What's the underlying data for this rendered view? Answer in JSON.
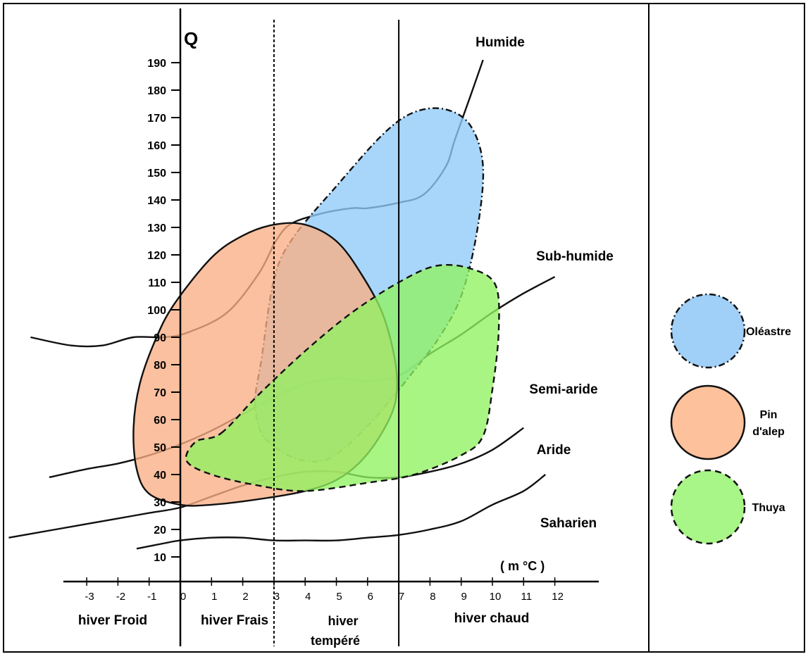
{
  "chart_data": {
    "type": "scatter",
    "title": "",
    "ylabel": "Q",
    "xlabel": "( m °C )",
    "xlim": [
      -3.5,
      12
    ],
    "ylim": [
      0,
      200
    ],
    "x_ticks": [
      -3,
      -2,
      -1,
      0,
      1,
      2,
      3,
      4,
      5,
      6,
      7,
      8,
      9,
      10,
      11,
      12
    ],
    "y_ticks": [
      10,
      20,
      30,
      40,
      50,
      60,
      70,
      80,
      90,
      100,
      110,
      120,
      130,
      140,
      150,
      160,
      170,
      180,
      190
    ],
    "vertical_lines_x": [
      0,
      3,
      7
    ],
    "winter_zones": [
      {
        "label": "hiver Froid",
        "x_range": [
          -3.5,
          0
        ]
      },
      {
        "label": "hiver Frais",
        "x_range": [
          0,
          3
        ]
      },
      {
        "label": "hiver tempéré",
        "x_range": [
          3,
          7
        ]
      },
      {
        "label": "hiver chaud",
        "x_range": [
          7,
          12
        ]
      }
    ],
    "bioclimatic_boundaries": [
      {
        "name": "Humide",
        "points": [
          [
            3,
            124
          ],
          [
            3.5,
            131
          ],
          [
            4.5,
            135
          ],
          [
            5.5,
            137
          ],
          [
            6,
            137
          ],
          [
            7,
            139
          ],
          [
            7.8,
            142
          ],
          [
            8.5,
            152
          ],
          [
            8.8,
            162
          ],
          [
            9.3,
            178
          ],
          [
            9.7,
            191
          ]
        ]
      },
      {
        "name": "Sub-humide",
        "points": [
          [
            -4.8,
            90
          ],
          [
            -3.5,
            87
          ],
          [
            -2.5,
            87
          ],
          [
            -1.5,
            90
          ],
          [
            -0.5,
            90
          ],
          [
            0.3,
            92
          ],
          [
            1.5,
            99
          ],
          [
            2.5,
            113
          ],
          [
            3,
            124
          ]
        ]
      },
      {
        "name": "Semi-aride",
        "points": [
          [
            -4.2,
            39
          ],
          [
            -3,
            42
          ],
          [
            -2,
            44
          ],
          [
            -1,
            47
          ],
          [
            0,
            51
          ],
          [
            1,
            56
          ],
          [
            2,
            62
          ],
          [
            3,
            68
          ],
          [
            4,
            73
          ],
          [
            5,
            75
          ],
          [
            6,
            74
          ],
          [
            7,
            76
          ],
          [
            8,
            84
          ],
          [
            9,
            91
          ],
          [
            10,
            99
          ],
          [
            11,
            106
          ],
          [
            12,
            112
          ]
        ]
      },
      {
        "name": "Aride",
        "points": [
          [
            -5.5,
            17
          ],
          [
            -4,
            20
          ],
          [
            -3,
            22
          ],
          [
            -2,
            24
          ],
          [
            -1,
            26
          ],
          [
            0,
            28
          ],
          [
            1,
            32
          ],
          [
            2,
            36
          ],
          [
            3,
            39
          ],
          [
            4,
            41
          ],
          [
            5,
            41
          ],
          [
            6,
            39
          ],
          [
            7,
            39
          ],
          [
            8,
            41
          ],
          [
            9,
            44
          ],
          [
            10,
            49
          ],
          [
            11,
            57
          ]
        ]
      },
      {
        "name": "Saharien",
        "points": [
          [
            -1.4,
            13
          ],
          [
            -0.5,
            15
          ],
          [
            0,
            16
          ],
          [
            1,
            17
          ],
          [
            2,
            17
          ],
          [
            3,
            16
          ],
          [
            4,
            16
          ],
          [
            5,
            16
          ],
          [
            6,
            17
          ],
          [
            7,
            18
          ],
          [
            8,
            20
          ],
          [
            9,
            23
          ],
          [
            10,
            29
          ],
          [
            11,
            34
          ],
          [
            11.7,
            40
          ]
        ]
      }
    ],
    "regions": [
      {
        "name": "Oléastre",
        "color": "#8ecbf9",
        "border": "dash-dot",
        "outline": [
          [
            3,
            111
          ],
          [
            3.6,
            126
          ],
          [
            5,
            145
          ],
          [
            6.5,
            164
          ],
          [
            7.5,
            172
          ],
          [
            8.5,
            173
          ],
          [
            9.3,
            167
          ],
          [
            9.7,
            152
          ],
          [
            9.5,
            128
          ],
          [
            9,
            105
          ],
          [
            8.3,
            90
          ],
          [
            7.5,
            78
          ],
          [
            6.5,
            64
          ],
          [
            5.5,
            52
          ],
          [
            4.7,
            45.5
          ],
          [
            4,
            45
          ],
          [
            3.3,
            48
          ],
          [
            2.6,
            55
          ],
          [
            2.4,
            67
          ],
          [
            2.6,
            82
          ]
        ]
      },
      {
        "name": "Pin d'alep",
        "color": "#f9ae84",
        "border": "solid",
        "outline": [
          [
            -0.2,
            102
          ],
          [
            1,
            119
          ],
          [
            2,
            127
          ],
          [
            3,
            131
          ],
          [
            4,
            131
          ],
          [
            5,
            125
          ],
          [
            5.8,
            113
          ],
          [
            6.5,
            98
          ],
          [
            6.9,
            80
          ],
          [
            6.9,
            67
          ],
          [
            6.5,
            56
          ],
          [
            5.8,
            45
          ],
          [
            5,
            38
          ],
          [
            4,
            34
          ],
          [
            2.5,
            31
          ],
          [
            1,
            29
          ],
          [
            0,
            29
          ],
          [
            -1,
            33
          ],
          [
            -1.4,
            42
          ],
          [
            -1.5,
            57
          ],
          [
            -1.3,
            73
          ],
          [
            -0.8,
            89
          ]
        ]
      },
      {
        "name": "Thuya",
        "color": "#90f260",
        "border": "dashed",
        "outline": [
          [
            1.3,
            55
          ],
          [
            2.5,
            69
          ],
          [
            4,
            85
          ],
          [
            5.5,
            99
          ],
          [
            7,
            110
          ],
          [
            8.2,
            116
          ],
          [
            9.3,
            115
          ],
          [
            10.1,
            109
          ],
          [
            10.2,
            92
          ],
          [
            10,
            71
          ],
          [
            9.7,
            54
          ],
          [
            9,
            47
          ],
          [
            7.5,
            40
          ],
          [
            6,
            37
          ],
          [
            4,
            34
          ],
          [
            2.5,
            36
          ],
          [
            1,
            40
          ],
          [
            0.2,
            45
          ],
          [
            0.5,
            52
          ]
        ]
      }
    ]
  },
  "legend": [
    {
      "label": "Oléastre",
      "color": "#a0cff7",
      "border": "dash-dot"
    },
    {
      "label": "Pin\nd'alep",
      "color": "#fdc19c",
      "border": "solid"
    },
    {
      "label": "Thuya",
      "color": "#a8f588",
      "border": "dashed"
    }
  ]
}
